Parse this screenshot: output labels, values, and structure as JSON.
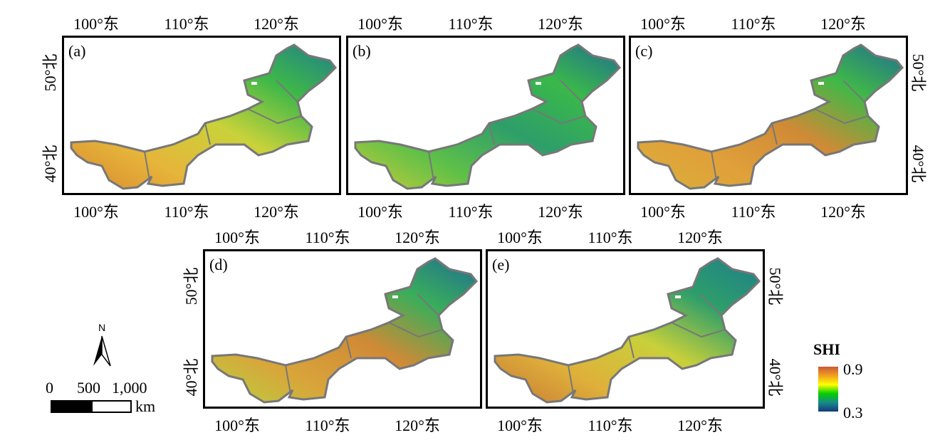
{
  "panels": [
    {
      "label": "(a)",
      "colors": [
        "#d88a30",
        "#e6b53a",
        "#c9d23a",
        "#3fb848",
        "#1f7f8a"
      ],
      "lat_side": "left"
    },
    {
      "label": "(b)",
      "colors": [
        "#c8cc3a",
        "#5fc048",
        "#2e9e6a",
        "#3ab84a",
        "#1f6f90"
      ],
      "lat_side": "none"
    },
    {
      "label": "(c)",
      "colors": [
        "#d9b13a",
        "#e0a03a",
        "#d08a36",
        "#40b848",
        "#1f6f90"
      ],
      "lat_side": "right"
    },
    {
      "label": "(d)",
      "colors": [
        "#b8d040",
        "#d9a43a",
        "#d08a36",
        "#3aae5a",
        "#1f6f90"
      ],
      "lat_side": "left"
    },
    {
      "label": "(e)",
      "colors": [
        "#c77a36",
        "#dfb03a",
        "#c8d03a",
        "#2e9e6a",
        "#1f7f8a"
      ],
      "lat_side": "right"
    }
  ],
  "axes": {
    "lon": [
      "100°东",
      "110°东",
      "120°东"
    ],
    "lat": [
      "50°北",
      "40°北"
    ]
  },
  "scalebar": {
    "north": "N",
    "ticks": [
      "0",
      "500",
      "1,000"
    ],
    "unit": "km"
  },
  "legend": {
    "title": "SHI",
    "max": "0.9",
    "min": "0.3",
    "colors": [
      "#c85a3a",
      "#f2a020",
      "#ffff00",
      "#00d000",
      "#1a8a8a",
      "#123a7a"
    ]
  }
}
